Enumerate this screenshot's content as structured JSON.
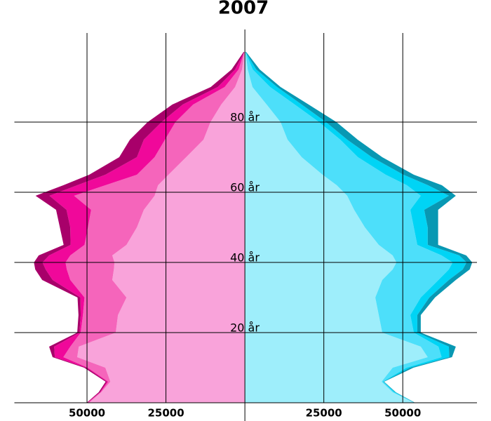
{
  "chart_data": {
    "type": "pyramid",
    "title": "2007",
    "y": [
      0,
      3,
      6,
      10,
      13,
      16,
      20,
      25,
      30,
      35,
      38,
      40,
      42,
      45,
      50,
      55,
      59,
      62,
      65,
      70,
      75,
      80,
      85,
      90,
      95,
      100
    ],
    "series": [
      {
        "side": "left",
        "color": "#f9a3da",
        "values": [
          49300,
          45500,
          42600,
          44200,
          53100,
          52600,
          40900,
          40200,
          37500,
          42000,
          41500,
          41300,
          42000,
          37500,
          34200,
          32000,
          28600,
          27500,
          24200,
          18600,
          13100,
          10900,
          7500,
          3100,
          900,
          200
        ]
      },
      {
        "side": "left",
        "color": "#f565bb",
        "values": [
          400,
          200,
          700,
          5600,
          4400,
          2700,
          11100,
          11100,
          13300,
          13300,
          14900,
          15500,
          13300,
          13300,
          15500,
          16700,
          25500,
          16700,
          10000,
          10000,
          12200,
          11100,
          8900,
          3300,
          1100,
          0
        ]
      },
      {
        "side": "left",
        "color": "#f0089a",
        "values": [
          200,
          200,
          400,
          400,
          2700,
          5100,
          400,
          700,
          1300,
          5600,
          6700,
          7300,
          6700,
          4400,
          5600,
          7800,
          7800,
          8900,
          10000,
          5600,
          6700,
          4400,
          3300,
          2200,
          1100,
          0
        ]
      },
      {
        "side": "left",
        "color": "#a8006a",
        "values": [
          200,
          400,
          400,
          700,
          700,
          1600,
          700,
          700,
          900,
          3300,
          3300,
          2700,
          3300,
          2200,
          3300,
          3300,
          4400,
          4400,
          5100,
          5600,
          4400,
          4400,
          3300,
          2200,
          1100,
          200
        ]
      },
      {
        "side": "right",
        "color": "#9eeefb",
        "values": [
          53500,
          46800,
          43300,
          46800,
          57900,
          55700,
          43500,
          42400,
          41300,
          43500,
          46800,
          48000,
          46800,
          42400,
          38000,
          34600,
          32400,
          29100,
          24600,
          18000,
          13500,
          11300,
          6900,
          2400,
          900,
          200
        ]
      },
      {
        "side": "right",
        "color": "#4ddffa",
        "values": [
          100,
          400,
          400,
          4400,
          4400,
          5600,
          10000,
          10000,
          14400,
          17800,
          17800,
          17800,
          15500,
          12200,
          15500,
          17800,
          23300,
          22200,
          20000,
          17800,
          16700,
          12200,
          8900,
          5600,
          1600,
          0
        ]
      },
      {
        "side": "right",
        "color": "#00d4f5",
        "values": [
          100,
          400,
          200,
          1100,
          2400,
          3300,
          1100,
          2200,
          2700,
          3300,
          4400,
          4400,
          5600,
          3300,
          4400,
          4400,
          8900,
          6700,
          5600,
          4400,
          2200,
          2200,
          2200,
          2200,
          1100,
          0
        ]
      },
      {
        "side": "right",
        "color": "#0898b3",
        "values": [
          200,
          200,
          200,
          1100,
          900,
          2200,
          1100,
          1100,
          1800,
          2200,
          2200,
          1800,
          2200,
          3300,
          3300,
          4400,
          2200,
          4400,
          3300,
          3300,
          3300,
          3300,
          2200,
          1100,
          1100,
          200
        ]
      }
    ],
    "xlim": [
      -73000,
      73500
    ],
    "xticks": [
      {
        "value": -50000,
        "label": "50000"
      },
      {
        "value": -25000,
        "label": "25000"
      },
      25000,
      50000
    ],
    "ylim": [
      0,
      106
    ],
    "yticks": [
      {
        "value": 20,
        "label": "20 år"
      },
      {
        "value": 40,
        "label": "40 år"
      },
      {
        "value": 60,
        "label": "60 år"
      },
      {
        "value": 80,
        "label": "80 år"
      }
    ],
    "grid": true
  }
}
